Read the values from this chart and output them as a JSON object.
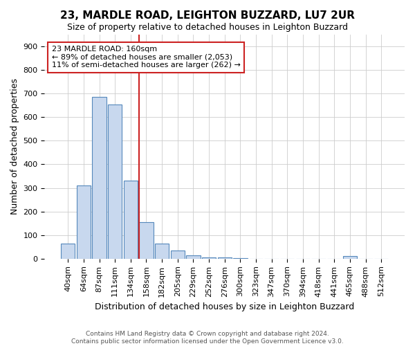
{
  "title": "23, MARDLE ROAD, LEIGHTON BUZZARD, LU7 2UR",
  "subtitle": "Size of property relative to detached houses in Leighton Buzzard",
  "xlabel": "Distribution of detached houses by size in Leighton Buzzard",
  "ylabel": "Number of detached properties",
  "categories": [
    "40sqm",
    "64sqm",
    "87sqm",
    "111sqm",
    "134sqm",
    "158sqm",
    "182sqm",
    "205sqm",
    "229sqm",
    "252sqm",
    "276sqm",
    "300sqm",
    "323sqm",
    "347sqm",
    "370sqm",
    "394sqm",
    "418sqm",
    "441sqm",
    "465sqm",
    "488sqm",
    "512sqm"
  ],
  "values": [
    65,
    310,
    685,
    655,
    330,
    155,
    65,
    35,
    15,
    5,
    5,
    3,
    0,
    0,
    0,
    0,
    0,
    0,
    10,
    0,
    0
  ],
  "bar_color": "#c8d8ee",
  "bar_edgecolor": "#5588bb",
  "bar_linewidth": 0.8,
  "annotation_text": "23 MARDLE ROAD: 160sqm\n← 89% of detached houses are smaller (2,053)\n11% of semi-detached houses are larger (262) →",
  "annotation_box_facecolor": "#ffffff",
  "annotation_box_edgecolor": "#cc2222",
  "vline_index": 5,
  "vline_color": "#cc2222",
  "ylim": [
    0,
    950
  ],
  "yticks": [
    0,
    100,
    200,
    300,
    400,
    500,
    600,
    700,
    800,
    900
  ],
  "title_fontsize": 11,
  "subtitle_fontsize": 9,
  "ylabel_fontsize": 9,
  "xlabel_fontsize": 9,
  "tick_fontsize": 8,
  "ann_fontsize": 8,
  "footer_line1": "Contains HM Land Registry data © Crown copyright and database right 2024.",
  "footer_line2": "Contains public sector information licensed under the Open Government Licence v3.0.",
  "fig_facecolor": "#ffffff",
  "ax_facecolor": "#ffffff",
  "grid_color": "#cccccc"
}
